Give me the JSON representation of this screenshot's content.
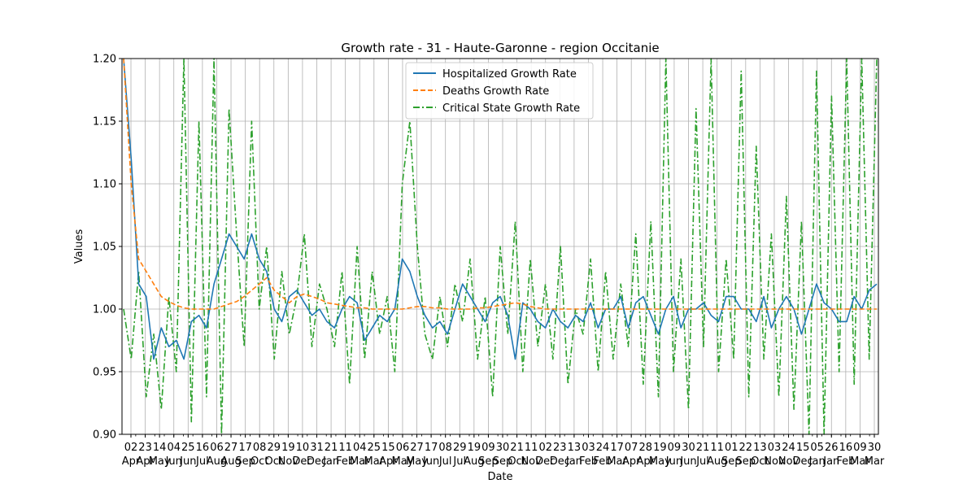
{
  "chart_data": {
    "type": "line",
    "title": "Growth rate - 31 - Haute-Garonne - region Occitanie",
    "xlabel": "Date",
    "ylabel": "Values",
    "ylim": [
      0.9,
      1.2
    ],
    "yticks": [
      "0.90",
      "0.95",
      "1.00",
      "1.05",
      "1.10",
      "1.15",
      "1.20"
    ],
    "grid": true,
    "legend_position": "top-center",
    "x_ticks": [
      {
        "day": "02",
        "month": "Apr"
      },
      {
        "day": "23",
        "month": "Apr"
      },
      {
        "day": "14",
        "month": "May"
      },
      {
        "day": "04",
        "month": "Jun"
      },
      {
        "day": "25",
        "month": "Jun"
      },
      {
        "day": "16",
        "month": "Jul"
      },
      {
        "day": "06",
        "month": "Aug"
      },
      {
        "day": "27",
        "month": "Aug"
      },
      {
        "day": "17",
        "month": "Sep"
      },
      {
        "day": "08",
        "month": "Oct"
      },
      {
        "day": "29",
        "month": "Oct"
      },
      {
        "day": "19",
        "month": "Nov"
      },
      {
        "day": "10",
        "month": "Dec"
      },
      {
        "day": "31",
        "month": "Dec"
      },
      {
        "day": "21",
        "month": "Jan"
      },
      {
        "day": "11",
        "month": "Feb"
      },
      {
        "day": "04",
        "month": "Mar"
      },
      {
        "day": "25",
        "month": "Mar"
      },
      {
        "day": "15",
        "month": "Apr"
      },
      {
        "day": "06",
        "month": "May"
      },
      {
        "day": "27",
        "month": "May"
      },
      {
        "day": "17",
        "month": "Jun"
      },
      {
        "day": "08",
        "month": "Jul"
      },
      {
        "day": "29",
        "month": "Jul"
      },
      {
        "day": "19",
        "month": "Aug"
      },
      {
        "day": "09",
        "month": "Sep"
      },
      {
        "day": "30",
        "month": "Sep"
      },
      {
        "day": "21",
        "month": "Oct"
      },
      {
        "day": "11",
        "month": "Nov"
      },
      {
        "day": "02",
        "month": "Dec"
      },
      {
        "day": "23",
        "month": "Dec"
      },
      {
        "day": "13",
        "month": "Jan"
      },
      {
        "day": "03",
        "month": "Feb"
      },
      {
        "day": "24",
        "month": "Feb"
      },
      {
        "day": "17",
        "month": "Mar"
      },
      {
        "day": "07",
        "month": "Apr"
      },
      {
        "day": "28",
        "month": "Apr"
      },
      {
        "day": "19",
        "month": "May"
      },
      {
        "day": "09",
        "month": "Jun"
      },
      {
        "day": "30",
        "month": "Jun"
      },
      {
        "day": "21",
        "month": "Jul"
      },
      {
        "day": "11",
        "month": "Aug"
      },
      {
        "day": "01",
        "month": "Sep"
      },
      {
        "day": "22",
        "month": "Sep"
      },
      {
        "day": "13",
        "month": "Oct"
      },
      {
        "day": "03",
        "month": "Nov"
      },
      {
        "day": "24",
        "month": "Nov"
      },
      {
        "day": "15",
        "month": "Dec"
      },
      {
        "day": "05",
        "month": "Jan"
      },
      {
        "day": "26",
        "month": "Jan"
      },
      {
        "day": "16",
        "month": "Feb"
      },
      {
        "day": "09",
        "month": "Mar"
      },
      {
        "day": "30",
        "month": "Mar"
      }
    ],
    "series": [
      {
        "name": "Hospitalized Growth Rate",
        "color": "#1f77b4",
        "dash": "solid",
        "values": [
          1.2,
          1.12,
          1.02,
          1.01,
          0.96,
          0.985,
          0.97,
          0.975,
          0.96,
          0.99,
          0.995,
          0.985,
          1.02,
          1.04,
          1.06,
          1.05,
          1.04,
          1.06,
          1.04,
          1.03,
          1.0,
          0.99,
          1.01,
          1.015,
          1.005,
          0.995,
          1.0,
          0.99,
          0.985,
          1.0,
          1.01,
          1.005,
          0.975,
          0.985,
          0.995,
          0.99,
          1.0,
          1.04,
          1.03,
          1.01,
          0.995,
          0.985,
          0.99,
          0.98,
          1.0,
          1.02,
          1.01,
          1.0,
          0.99,
          1.005,
          1.01,
          0.995,
          0.96,
          1.005,
          1.0,
          0.99,
          0.985,
          1.0,
          0.99,
          0.985,
          0.995,
          0.99,
          1.005,
          0.985,
          1.0,
          1.0,
          1.01,
          0.985,
          1.005,
          1.01,
          0.995,
          0.98,
          1.0,
          1.01,
          0.985,
          1.0,
          1.0,
          1.005,
          0.995,
          0.99,
          1.01,
          1.01,
          1.0,
          1.0,
          0.99,
          1.01,
          0.985,
          1.0,
          1.01,
          1.0,
          0.98,
          1.0,
          1.02,
          1.005,
          1.0,
          0.99,
          0.99,
          1.01,
          1.0,
          1.015,
          1.02
        ]
      },
      {
        "name": "Deaths Growth Rate",
        "color": "#ff7f0e",
        "dash": "dashed",
        "values": [
          1.2,
          1.1,
          1.04,
          1.03,
          1.02,
          1.01,
          1.006,
          1.003,
          1.001,
          1.0,
          1.0,
          1.0,
          1.0,
          1.002,
          1.004,
          1.006,
          1.01,
          1.015,
          1.02,
          1.025,
          1.015,
          1.01,
          1.005,
          1.01,
          1.012,
          1.01,
          1.008,
          1.005,
          1.004,
          1.003,
          1.002,
          1.001,
          1.001,
          1.0,
          1.0,
          1.0,
          1.0,
          1.0,
          1.001,
          1.002,
          1.002,
          1.001,
          1.001,
          1.0,
          1.0,
          1.0,
          1.0,
          1.001,
          1.001,
          1.002,
          1.003,
          1.004,
          1.005,
          1.004,
          1.002,
          1.001,
          1.0,
          1.0,
          1.0,
          1.0,
          1.0,
          1.0,
          1.0,
          1.0,
          1.0,
          1.0,
          1.0,
          1.0,
          1.0,
          1.0,
          1.0,
          1.0,
          1.0,
          1.0,
          1.0,
          1.0,
          1.0,
          1.0,
          1.0,
          1.0,
          1.0,
          1.0,
          1.0,
          1.0,
          1.0,
          1.0,
          1.0,
          1.0,
          1.0,
          1.0,
          1.0,
          1.0,
          1.0,
          1.0,
          1.0,
          1.0,
          1.0,
          1.0,
          1.0,
          1.0,
          1.0
        ]
      },
      {
        "name": "Critical State Growth Rate",
        "color": "#2ca02c",
        "dash": "dashdot",
        "values": [
          1.0,
          0.96,
          1.03,
          0.93,
          0.98,
          0.92,
          1.01,
          0.95,
          1.2,
          0.91,
          1.15,
          0.93,
          1.2,
          0.9,
          1.16,
          1.06,
          0.97,
          1.15,
          1.0,
          1.05,
          0.96,
          1.03,
          0.98,
          1.01,
          1.06,
          0.97,
          1.02,
          1.0,
          0.97,
          1.03,
          0.94,
          1.05,
          0.96,
          1.03,
          0.98,
          1.01,
          0.95,
          1.1,
          1.15,
          1.05,
          0.98,
          0.96,
          1.01,
          0.97,
          1.02,
          0.99,
          1.04,
          0.96,
          1.01,
          0.93,
          1.05,
          0.98,
          1.07,
          0.95,
          1.04,
          0.97,
          1.02,
          0.96,
          1.05,
          0.94,
          1.0,
          0.98,
          1.04,
          0.95,
          1.03,
          0.96,
          1.02,
          0.97,
          1.06,
          0.94,
          1.07,
          0.93,
          1.2,
          0.95,
          1.04,
          0.92,
          1.16,
          0.97,
          1.2,
          0.95,
          1.04,
          0.96,
          1.19,
          0.93,
          1.13,
          0.96,
          1.06,
          0.93,
          1.09,
          0.92,
          1.07,
          0.9,
          1.19,
          0.9,
          1.17,
          0.95,
          1.2,
          0.94,
          1.2,
          0.96,
          1.2
        ]
      }
    ]
  }
}
